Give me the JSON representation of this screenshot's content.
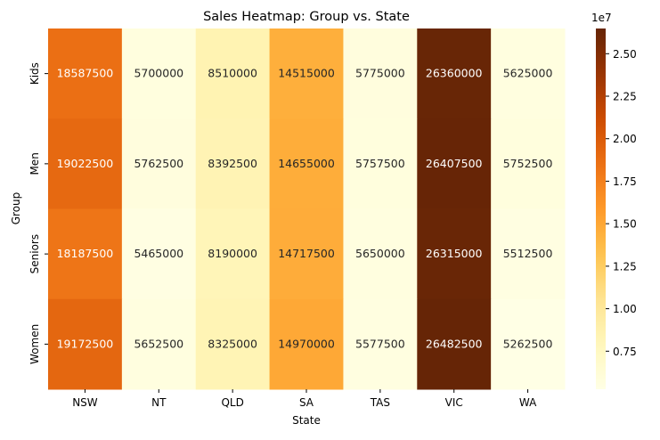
{
  "chart_data": {
    "type": "heatmap",
    "title": "Sales Heatmap: Group vs. State",
    "xlabel": "State",
    "ylabel": "Group",
    "x_categories": [
      "NSW",
      "NT",
      "QLD",
      "SA",
      "TAS",
      "VIC",
      "WA"
    ],
    "y_categories": [
      "Kids",
      "Men",
      "Seniors",
      "Women"
    ],
    "values": [
      [
        18587500,
        5700000,
        8510000,
        14515000,
        5775000,
        26360000,
        5625000
      ],
      [
        19022500,
        5762500,
        8392500,
        14655000,
        5757500,
        26407500,
        5752500
      ],
      [
        18187500,
        5465000,
        8190000,
        14717500,
        5650000,
        26315000,
        5512500
      ],
      [
        19172500,
        5652500,
        8325000,
        14970000,
        5577500,
        26482500,
        5262500
      ]
    ],
    "colormap": "YlOrBr",
    "color_range": [
      5262500,
      26482500
    ],
    "colorbar": {
      "ticks": [
        0.75,
        1.0,
        1.25,
        1.5,
        1.75,
        2.0,
        2.25,
        2.5
      ],
      "tick_labels": [
        "0.75",
        "1.00",
        "1.25",
        "1.50",
        "1.75",
        "2.00",
        "2.25",
        "2.50"
      ],
      "multiplier_label": "1e7",
      "multiplier": 10000000
    },
    "annotate": true
  }
}
